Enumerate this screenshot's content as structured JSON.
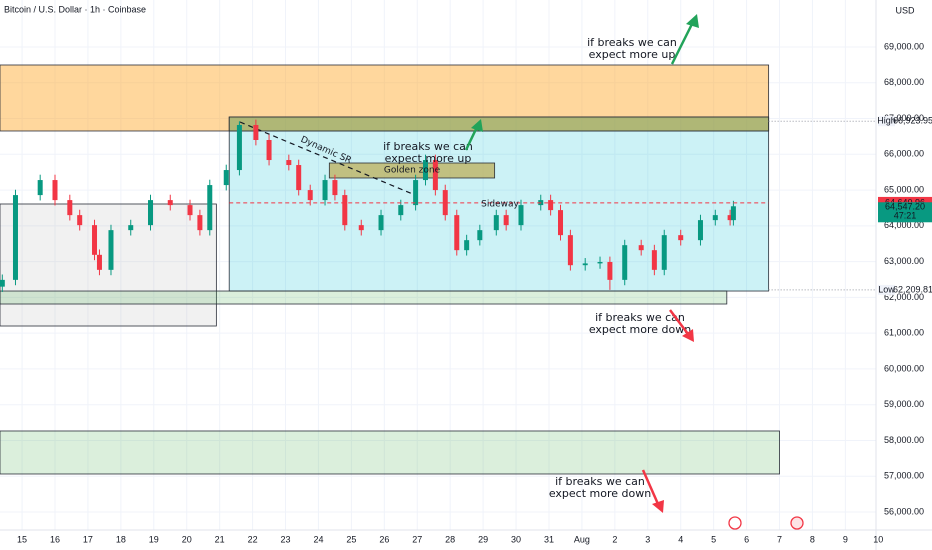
{
  "chart_data": {
    "type": "candlestick",
    "title": "Bitcoin / U.S. Dollar · 1h · Coinbase",
    "currency": "USD",
    "xlim": [
      14.33,
      40.93
    ],
    "ylim": [
      55497,
      70314
    ],
    "xticks": [
      15,
      16,
      17,
      18,
      19,
      20,
      21,
      22,
      23,
      24,
      25,
      26,
      27,
      28,
      29,
      30,
      31,
      {
        "value": 32,
        "label": "Aug"
      },
      {
        "value": 33,
        "label": "2"
      },
      {
        "value": 34,
        "label": "3"
      },
      {
        "value": 35,
        "label": "4"
      },
      {
        "value": 36,
        "label": "5"
      },
      {
        "value": 37,
        "label": "6"
      },
      {
        "value": 38,
        "label": "7"
      },
      {
        "value": 39,
        "label": "8"
      },
      {
        "value": 40,
        "label": "9"
      },
      {
        "value": 41,
        "label": "10"
      }
    ],
    "yticks": [
      {
        "value": 56000,
        "label": "56,000.00"
      },
      {
        "value": 57000,
        "label": "57,000.00"
      },
      {
        "value": 58000,
        "label": "58,000.00"
      },
      {
        "value": 59000,
        "label": "59,000.00"
      },
      {
        "value": 60000,
        "label": "60,000.00"
      },
      {
        "value": 61000,
        "label": "61,000.00"
      },
      {
        "value": 62000,
        "label": "62,000.00"
      },
      {
        "value": 63000,
        "label": "63,000.00"
      },
      {
        "value": 64000,
        "label": "64,000.00"
      },
      {
        "value": 65000,
        "label": "65,000.00"
      },
      {
        "value": 66000,
        "label": "66,000.00"
      },
      {
        "value": 67000,
        "label": "67,000.00"
      },
      {
        "value": 68000,
        "label": "68,000.00"
      },
      {
        "value": 69000,
        "label": "69,000.00"
      }
    ],
    "grid": true,
    "up_color": "#089981",
    "down_color": "#f23645",
    "x": [
      14.4,
      14.8,
      15.55,
      16.0,
      16.45,
      16.75,
      17.2,
      17.35,
      17.7,
      18.3,
      18.9,
      19.5,
      20.1,
      20.4,
      20.7,
      21.2,
      21.6,
      22.1,
      22.5,
      23.1,
      23.4,
      23.75,
      24.2,
      24.5,
      24.8,
      25.3,
      25.9,
      26.5,
      26.95,
      27.25,
      27.55,
      27.85,
      28.2,
      28.5,
      28.9,
      29.4,
      29.7,
      30.15,
      30.75,
      31.05,
      31.35,
      31.65,
      32.1,
      32.55,
      32.85,
      33.3,
      33.8,
      34.2,
      34.5,
      35.0,
      35.6,
      36.05,
      36.5,
      36.6
    ],
    "open": [
      62300,
      62490,
      64860,
      65280,
      64720,
      64300,
      64020,
      63190,
      62770,
      63880,
      64020,
      64720,
      64580,
      64300,
      63880,
      65140,
      65560,
      66820,
      66400,
      65840,
      65700,
      65000,
      64720,
      65280,
      64860,
      64020,
      63880,
      64300,
      64580,
      65280,
      65840,
      65000,
      64300,
      63320,
      63600,
      63880,
      64300,
      64020,
      64580,
      64720,
      64440,
      63740,
      62900,
      62950,
      62990,
      62490,
      63460,
      63320,
      62770,
      63740,
      63600,
      64160,
      64300,
      64160
    ],
    "high": [
      62640,
      65010,
      65430,
      65430,
      64870,
      64450,
      64170,
      63340,
      64030,
      64170,
      64870,
      64870,
      64730,
      64450,
      65290,
      65710,
      66923.95,
      66970,
      66550,
      65990,
      65850,
      65150,
      65430,
      65430,
      65010,
      64170,
      64450,
      64730,
      65430,
      65990,
      65990,
      65150,
      64450,
      63750,
      64030,
      64450,
      64450,
      64730,
      64870,
      64870,
      64590,
      63890,
      63100,
      63140,
      63140,
      63610,
      63610,
      63470,
      63890,
      63890,
      64310,
      64450,
      64450,
      64700
    ],
    "low": [
      62150,
      62340,
      64710,
      64570,
      64150,
      63870,
      63040,
      62620,
      62620,
      63730,
      63870,
      64430,
      64150,
      63730,
      63730,
      64990,
      65410,
      66250,
      65690,
      65550,
      64850,
      64570,
      64570,
      64710,
      63870,
      63730,
      63730,
      64150,
      64430,
      65130,
      64850,
      64150,
      63170,
      63170,
      63450,
      63730,
      63870,
      63870,
      64430,
      64290,
      63590,
      62750,
      62750,
      62800,
      62209.81,
      62340,
      63170,
      62620,
      62620,
      63450,
      63450,
      64010,
      64010,
      64010
    ],
    "close": [
      62490,
      64860,
      65280,
      64720,
      64300,
      64020,
      63190,
      62770,
      63880,
      64020,
      64720,
      64580,
      64300,
      63880,
      65140,
      65560,
      66820,
      66400,
      65840,
      65700,
      65000,
      64720,
      65280,
      64860,
      64020,
      63880,
      64300,
      64580,
      65280,
      65840,
      65000,
      64300,
      63320,
      63600,
      63880,
      64300,
      64020,
      64580,
      64720,
      64440,
      63740,
      62900,
      62950,
      62990,
      62490,
      63460,
      63320,
      62770,
      63740,
      63600,
      64160,
      64300,
      64160,
      64547.2
    ],
    "zones": [
      {
        "x": [
          14.33,
          37.67
        ],
        "y": [
          66652,
          68497
        ],
        "color": "rgba(255,167,38,0.45)"
      },
      {
        "x": [
          21.29,
          37.67
        ],
        "y": [
          62178,
          67043
        ],
        "color": "rgba(0,188,212,0.2)"
      },
      {
        "x": [
          21.29,
          37.67
        ],
        "y": [
          66652,
          67043
        ],
        "color": "rgba(140,150,60,0.45)"
      },
      {
        "x": [
          24.33,
          29.35
        ],
        "y": [
          65338,
          65757
        ],
        "color": "rgba(190,175,90,0.75)"
      },
      {
        "x": [
          14.33,
          20.9
        ],
        "y": [
          61200,
          64611
        ],
        "color": "rgba(160,160,160,0.15)"
      },
      {
        "x": [
          14.33,
          36.4
        ],
        "y": [
          61815,
          62178
        ],
        "color": "rgba(76,175,80,0.2)"
      },
      {
        "x": [
          14.33,
          38.0
        ],
        "y": [
          57063,
          58265
        ],
        "color": "rgba(76,175,80,0.2)"
      }
    ],
    "labels": [
      "Golden zone",
      "Sideway",
      "Dynamic SR"
    ],
    "annotations": [
      {
        "lines": [
          "if breaks we can",
          "expect more up"
        ],
        "color": "#22a35a"
      },
      {
        "lines": [
          "if breaks we can",
          "expect more up"
        ],
        "color": "#22a35a"
      },
      {
        "lines": [
          "if breaks we can",
          "expect more down"
        ],
        "color": "#f23645"
      },
      {
        "lines": [
          "if breaks we can",
          "expect more down"
        ],
        "color": "#f23645"
      }
    ],
    "high_tag": "High",
    "high_price": {
      "value": 66923.95,
      "label": "66,923.95"
    },
    "low_tag": "Low",
    "low_price": {
      "value": 62209.81,
      "label": "62,209.81"
    },
    "last_price": {
      "value": 64640.96,
      "label": "64,640.96"
    },
    "close_price": {
      "value": 64547.2,
      "label": "64,547.20"
    },
    "countdown": "47:21"
  }
}
